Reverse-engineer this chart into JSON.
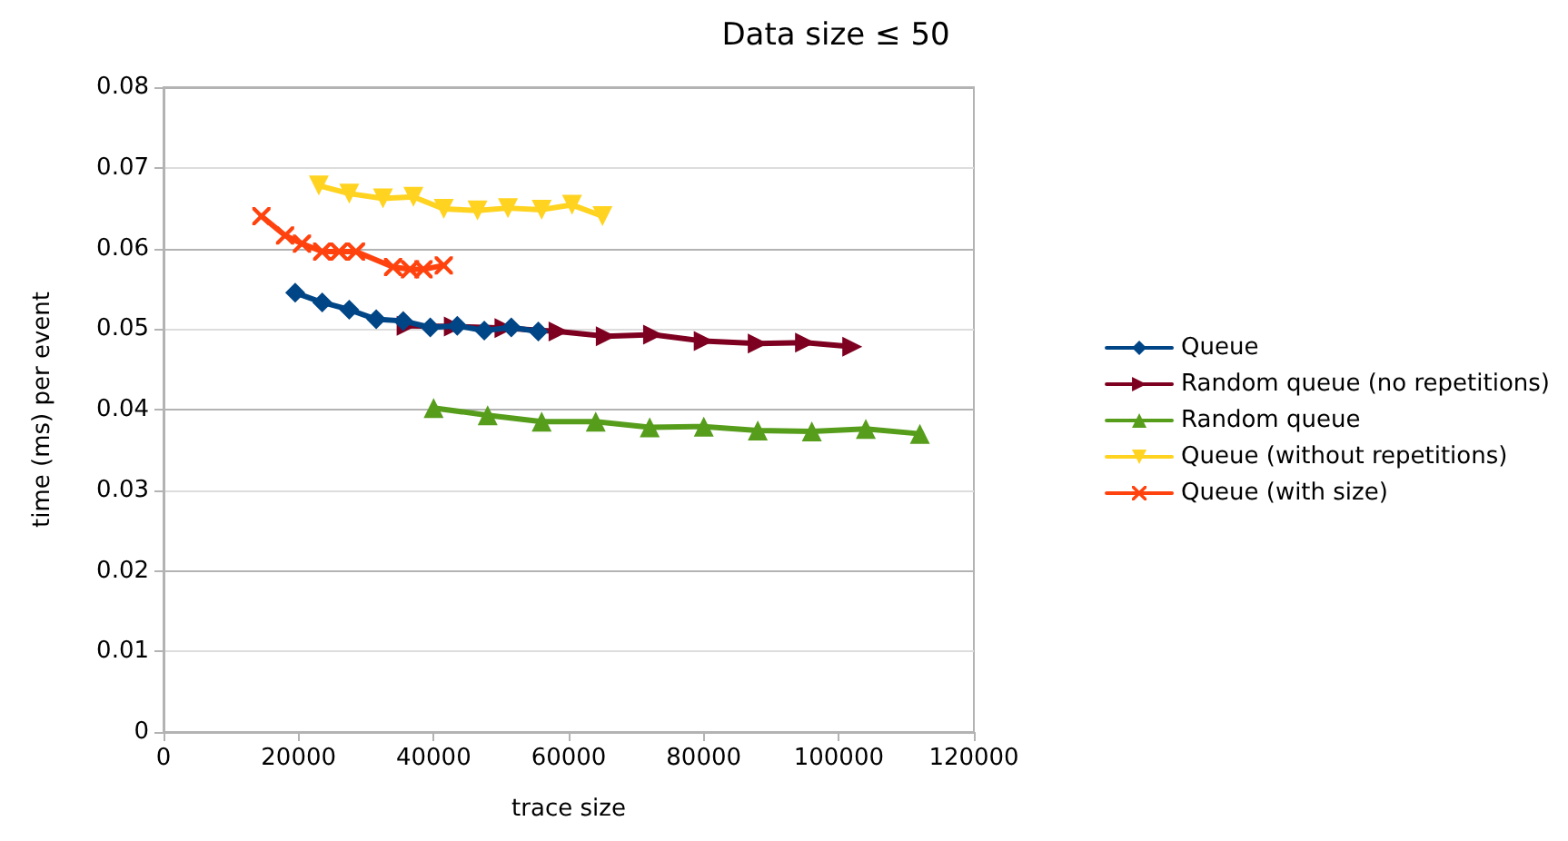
{
  "chart_data": {
    "type": "line",
    "title": "Data size ≤ 50",
    "xlabel": "trace size",
    "ylabel": "time (ms) per event",
    "xlim": [
      0,
      120000
    ],
    "xticks": [
      0,
      20000,
      40000,
      60000,
      80000,
      100000,
      120000
    ],
    "ylim": [
      0,
      0.08
    ],
    "yticks": [
      0,
      0.01,
      0.02,
      0.03,
      0.04,
      0.05,
      0.06,
      0.07,
      0.08
    ],
    "grid": "y",
    "legend": "right",
    "series": [
      {
        "name": "Queue",
        "color": "#004586",
        "marker": "diamond",
        "x": [
          19500,
          23500,
          27500,
          31500,
          35500,
          39500,
          43500,
          47500,
          51500,
          55500
        ],
        "values": [
          0.0545,
          0.0533,
          0.0524,
          0.0512,
          0.051,
          0.0502,
          0.0504,
          0.0498,
          0.0502,
          0.0497
        ]
      },
      {
        "name": "Random queue (no repetitions)",
        "color": "#7e0021",
        "marker": "triangle-right",
        "x": [
          36000,
          43000,
          50500,
          58500,
          65500,
          72500,
          80000,
          88000,
          95000,
          102000
        ],
        "values": [
          0.0504,
          0.0503,
          0.0501,
          0.0497,
          0.0491,
          0.0493,
          0.0485,
          0.0482,
          0.0483,
          0.0478
        ]
      },
      {
        "name": "Random queue",
        "color": "#579d1c",
        "marker": "triangle",
        "x": [
          40000,
          48000,
          56000,
          64000,
          72000,
          80000,
          88000,
          96000,
          104000,
          112000
        ],
        "values": [
          0.0402,
          0.0393,
          0.0385,
          0.0385,
          0.0378,
          0.0379,
          0.0374,
          0.0373,
          0.0376,
          0.037
        ]
      },
      {
        "name": "Queue (without repetitions)",
        "color": "#ffd320",
        "marker": "triangle-down",
        "x": [
          23000,
          27500,
          32500,
          37000,
          41500,
          46500,
          51000,
          56000,
          60500,
          65000
        ],
        "values": [
          0.0678,
          0.0668,
          0.0662,
          0.0664,
          0.0649,
          0.0647,
          0.065,
          0.0648,
          0.0654,
          0.064
        ]
      },
      {
        "name": "Queue (with size)",
        "color": "#ff420e",
        "marker": "cross",
        "x": [
          14500,
          18000,
          20500,
          23500,
          26000,
          28500,
          34000,
          36500,
          38500,
          41500
        ],
        "values": [
          0.064,
          0.0616,
          0.0606,
          0.0596,
          0.0596,
          0.0596,
          0.0577,
          0.0574,
          0.0574,
          0.0579
        ]
      }
    ]
  }
}
